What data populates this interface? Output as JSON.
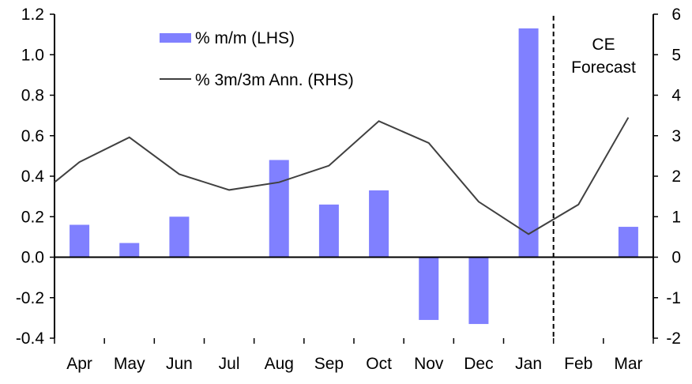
{
  "chart_data": {
    "type": "bar+line",
    "categories": [
      "Apr",
      "May",
      "Jun",
      "Jul",
      "Aug",
      "Sep",
      "Oct",
      "Nov",
      "Dec",
      "Jan",
      "Feb",
      "Mar"
    ],
    "series": [
      {
        "name": "% m/m (LHS)",
        "type": "bar",
        "axis": "left",
        "color": "#8080FF",
        "values": [
          0.16,
          0.07,
          0.2,
          0.0,
          0.48,
          0.26,
          0.33,
          -0.31,
          -0.33,
          1.13,
          0.0,
          0.15
        ]
      },
      {
        "name": "% 3m/3m Ann. (RHS)",
        "type": "line",
        "axis": "right",
        "color": "#404040",
        "left_edge_value": 1.85,
        "values": [
          2.35,
          2.96,
          2.05,
          1.66,
          1.85,
          2.26,
          3.36,
          2.82,
          1.37,
          0.57,
          1.3,
          3.45
        ]
      }
    ],
    "left_axis": {
      "ylim": [
        -0.4,
        1.2
      ],
      "ticks": [
        "-0.4",
        "-0.2",
        "0.0",
        "0.2",
        "0.4",
        "0.6",
        "0.8",
        "1.0",
        "1.2"
      ]
    },
    "right_axis": {
      "ylim": [
        -2,
        6
      ],
      "ticks": [
        "-2",
        "-1",
        "0",
        "1",
        "2",
        "3",
        "4",
        "5",
        "6"
      ]
    },
    "forecast_divider_after": "Jan",
    "annotation": [
      "CE",
      "Forecast"
    ],
    "legend_placement": "top-left",
    "grid": false
  }
}
